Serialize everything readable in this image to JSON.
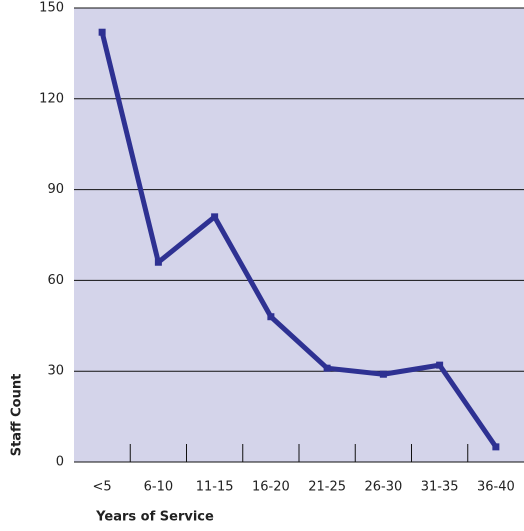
{
  "chart_data": {
    "type": "line",
    "categories": [
      "<5",
      "6-10",
      "11-15",
      "16-20",
      "21-25",
      "26-30",
      "31-35",
      "36-40"
    ],
    "series": [
      {
        "name": "Staff Count",
        "color": "#2e3192",
        "values": [
          142,
          66,
          81,
          48,
          31,
          29,
          32,
          5
        ]
      }
    ],
    "xlabel": "Years of Service",
    "ylabel": "Staff Count",
    "ylim": [
      0,
      150
    ],
    "yticks": [
      0,
      30,
      60,
      90,
      120,
      150
    ],
    "grid": true,
    "background": "#d4d4ea"
  }
}
